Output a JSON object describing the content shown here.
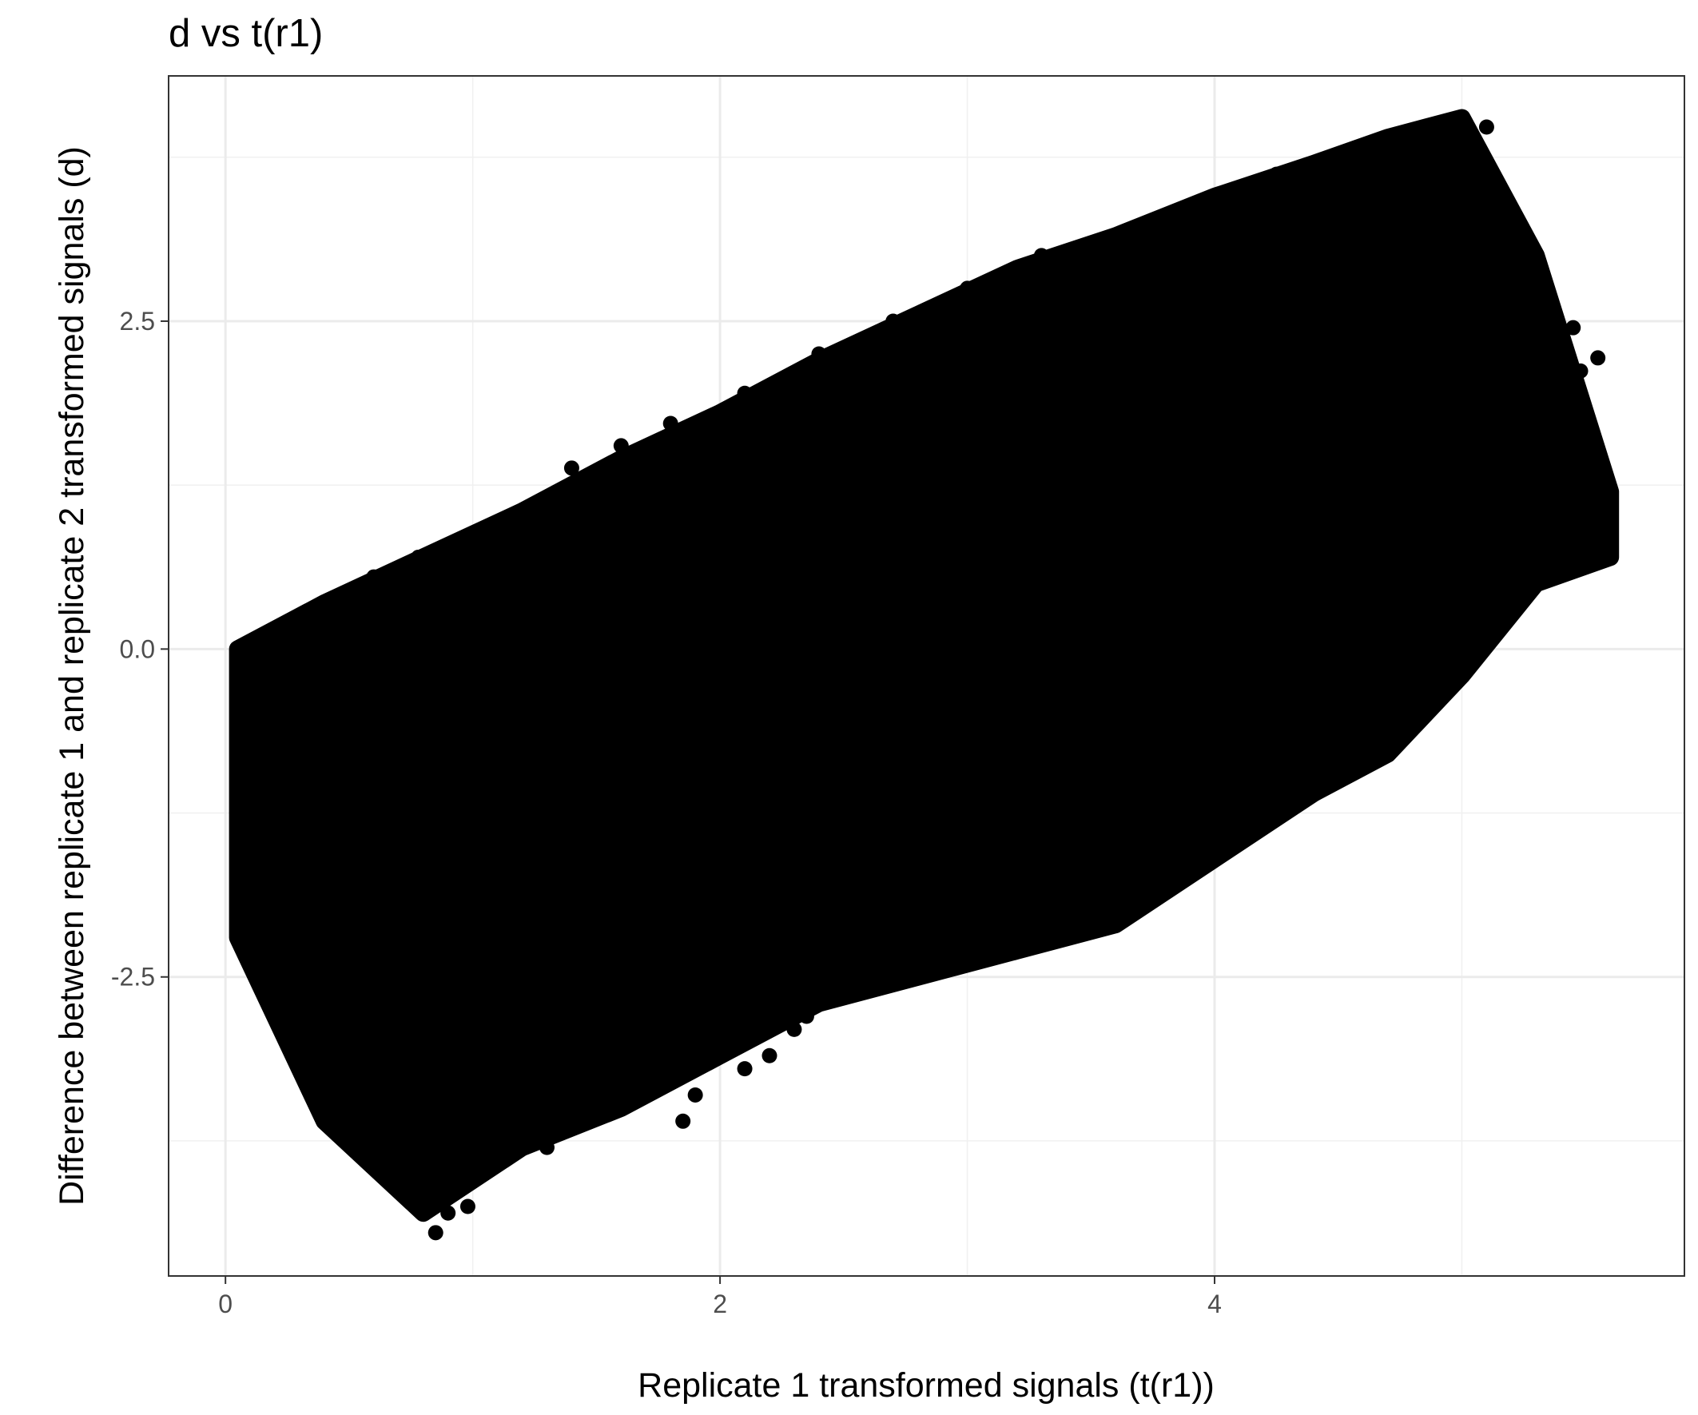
{
  "chart_data": {
    "type": "scatter",
    "title": "d vs t(r1)",
    "xlabel": "Replicate 1 transformed signals (t(r1))",
    "ylabel": "Difference between replicate 1 and replicate 2 transformed signals (d)",
    "xlim": [
      -0.23,
      5.9
    ],
    "ylim": [
      -4.78,
      4.37
    ],
    "x_ticks": [
      0,
      2,
      4
    ],
    "x_tick_labels": [
      "0",
      "2",
      "4"
    ],
    "y_ticks": [
      -2.5,
      0.0,
      2.5
    ],
    "y_tick_labels": [
      "-2.5",
      "0.0",
      "2.5"
    ],
    "grid": true,
    "point_color": "#000000",
    "envelope": {
      "x": [
        0.05,
        0.4,
        0.8,
        1.2,
        1.6,
        2.0,
        2.4,
        2.8,
        3.2,
        3.6,
        4.0,
        4.4,
        4.7,
        5.0,
        5.3,
        5.6
      ],
      "y_max": [
        0.0,
        0.35,
        0.7,
        1.05,
        1.45,
        1.8,
        2.2,
        2.55,
        2.9,
        3.15,
        3.45,
        3.7,
        3.9,
        4.05,
        3.0,
        1.2
      ],
      "y_min": [
        -2.2,
        -3.6,
        -4.3,
        -3.8,
        -3.5,
        -3.1,
        -2.7,
        -2.5,
        -2.3,
        -2.1,
        -1.6,
        -1.1,
        -0.8,
        -0.2,
        0.5,
        0.7
      ]
    },
    "points": [
      [
        5.1,
        3.98
      ],
      [
        4.95,
        3.88
      ],
      [
        4.85,
        3.82
      ],
      [
        4.7,
        3.72
      ],
      [
        4.55,
        3.6
      ],
      [
        4.1,
        3.52
      ],
      [
        4.3,
        3.5
      ],
      [
        5.05,
        3.02
      ],
      [
        4.9,
        2.95
      ],
      [
        4.6,
        2.85
      ],
      [
        5.3,
        2.58
      ],
      [
        5.45,
        2.45
      ],
      [
        5.55,
        2.22
      ],
      [
        5.48,
        2.12
      ],
      [
        5.38,
        2.05
      ],
      [
        5.25,
        1.85
      ],
      [
        5.2,
        1.55
      ],
      [
        5.35,
        1.3
      ],
      [
        5.6,
        0.95
      ],
      [
        5.6,
        0.85
      ],
      [
        5.5,
        0.95
      ],
      [
        5.45,
        0.82
      ],
      [
        5.35,
        0.75
      ],
      [
        5.3,
        0.55
      ],
      [
        5.2,
        0.42
      ],
      [
        5.15,
        0.25
      ],
      [
        5.05,
        0.15
      ],
      [
        4.95,
        0.05
      ],
      [
        4.9,
        -0.1
      ],
      [
        4.7,
        -0.35
      ],
      [
        4.6,
        -0.55
      ],
      [
        4.4,
        -0.8
      ],
      [
        4.2,
        -0.95
      ],
      [
        4.1,
        -1.1
      ],
      [
        3.9,
        -1.25
      ],
      [
        3.8,
        -1.35
      ],
      [
        4.0,
        -1.55
      ],
      [
        3.7,
        -1.7
      ],
      [
        3.6,
        -1.9
      ],
      [
        3.45,
        -1.92
      ],
      [
        3.3,
        -2.05
      ],
      [
        3.15,
        -2.2
      ],
      [
        3.0,
        -2.3
      ],
      [
        2.8,
        -2.35
      ],
      [
        2.6,
        -2.55
      ],
      [
        2.35,
        -2.8
      ],
      [
        2.3,
        -2.9
      ],
      [
        2.2,
        -3.1
      ],
      [
        2.1,
        -3.2
      ],
      [
        1.9,
        -3.4
      ],
      [
        1.85,
        -3.6
      ],
      [
        1.7,
        -3.4
      ],
      [
        1.6,
        -3.25
      ],
      [
        1.5,
        -3.15
      ],
      [
        1.3,
        -3.8
      ],
      [
        1.25,
        -3.6
      ],
      [
        1.15,
        -3.55
      ],
      [
        1.05,
        -3.85
      ],
      [
        0.98,
        -4.25
      ],
      [
        0.9,
        -4.3
      ],
      [
        0.88,
        -4.15
      ],
      [
        0.85,
        -4.45
      ],
      [
        0.75,
        -3.95
      ],
      [
        0.72,
        -4.05
      ],
      [
        0.6,
        -3.5
      ],
      [
        0.55,
        -3.65
      ],
      [
        0.5,
        -3.45
      ],
      [
        0.4,
        -3.35
      ],
      [
        0.35,
        -2.9
      ],
      [
        0.3,
        -2.5
      ],
      [
        0.2,
        -2.2
      ],
      [
        0.15,
        -2.1
      ],
      [
        0.08,
        -2.1
      ],
      [
        0.08,
        -2.2
      ],
      [
        0.1,
        -1.05
      ],
      [
        0.1,
        -0.85
      ],
      [
        0.07,
        -0.12
      ],
      [
        0.05,
        0.0
      ],
      [
        0.1,
        0.05
      ],
      [
        0.2,
        0.12
      ],
      [
        0.35,
        0.28
      ],
      [
        0.5,
        0.4
      ],
      [
        0.6,
        0.55
      ],
      [
        0.78,
        0.7
      ],
      [
        1.0,
        0.88
      ],
      [
        1.2,
        1.05
      ],
      [
        1.4,
        1.38
      ],
      [
        1.6,
        1.55
      ],
      [
        1.8,
        1.72
      ],
      [
        2.1,
        1.95
      ],
      [
        2.4,
        2.25
      ],
      [
        2.7,
        2.5
      ],
      [
        3.0,
        2.75
      ],
      [
        3.3,
        3.0
      ],
      [
        3.6,
        3.15
      ],
      [
        3.9,
        3.35
      ],
      [
        4.25,
        3.62
      ],
      [
        4.5,
        3.5
      ],
      [
        2.0,
        0.2
      ],
      [
        3.0,
        0.8
      ],
      [
        1.0,
        -1.5
      ],
      [
        2.5,
        -0.5
      ],
      [
        4.0,
        1.5
      ],
      [
        3.5,
        -0.2
      ],
      [
        1.5,
        0.3
      ],
      [
        2.2,
        1.0
      ],
      [
        3.8,
        2.2
      ],
      [
        4.6,
        1.9
      ],
      [
        0.7,
        -1.2
      ],
      [
        1.3,
        -2.2
      ],
      [
        2.8,
        -1.4
      ],
      [
        4.3,
        0.4
      ],
      [
        3.2,
        1.8
      ],
      [
        1.8,
        -0.8
      ],
      [
        0.4,
        -0.5
      ]
    ]
  }
}
